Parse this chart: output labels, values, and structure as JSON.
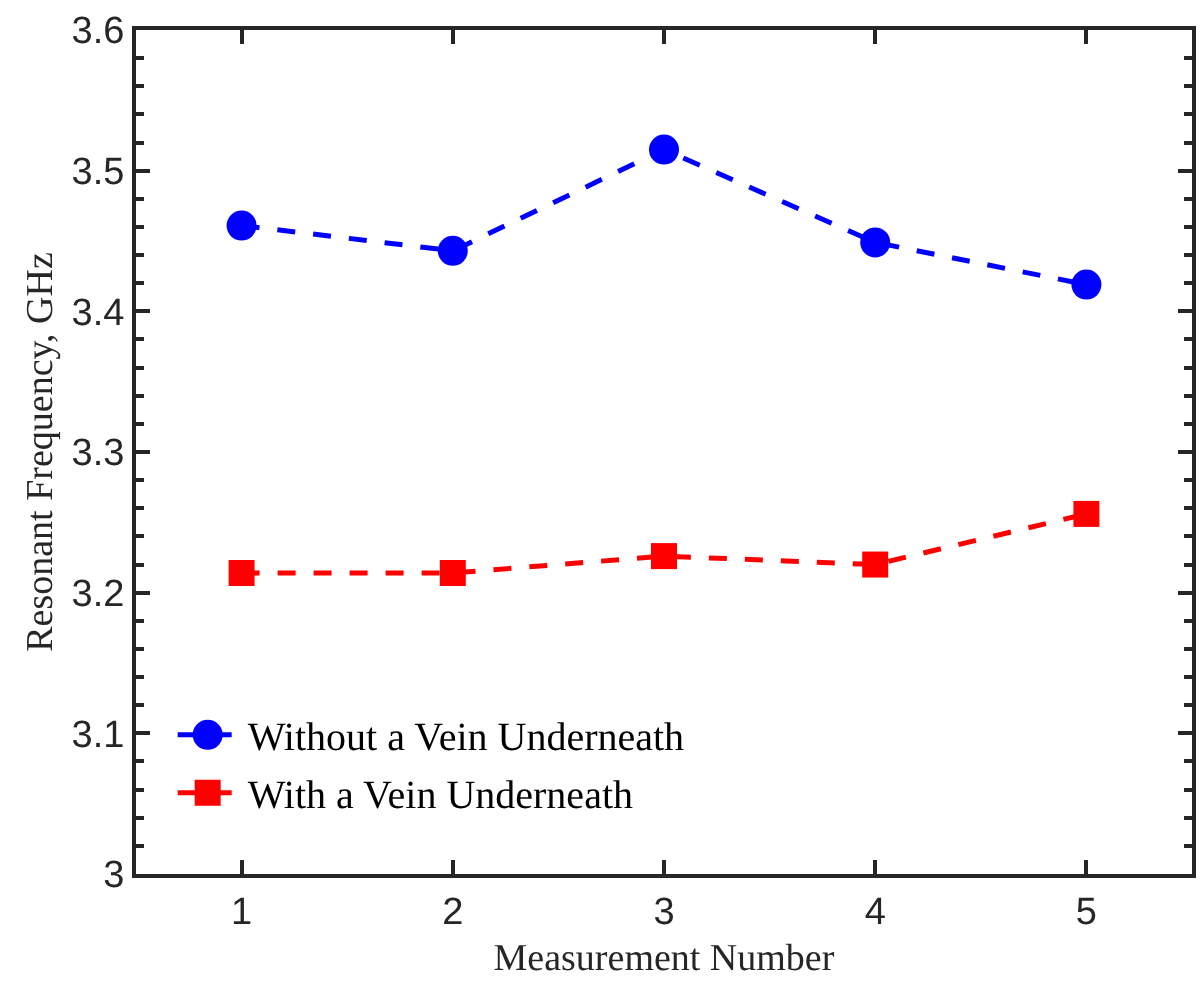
{
  "chart_data": {
    "type": "line",
    "xlabel": "Measurement Number",
    "ylabel": "Resonant Frequency, GHz",
    "x": [
      1,
      2,
      3,
      4,
      5
    ],
    "series": [
      {
        "name": "Without a Vein Underneath",
        "color": "#0000ff",
        "marker": "circle",
        "values": [
          3.461,
          3.443,
          3.515,
          3.449,
          3.419
        ]
      },
      {
        "name": "With a Vein Underneath",
        "color": "#ff0000",
        "marker": "square",
        "values": [
          3.214,
          3.214,
          3.226,
          3.22,
          3.256
        ]
      }
    ],
    "xlim": [
      0.5,
      5.5
    ],
    "xticks": [
      1,
      2,
      3,
      4,
      5
    ],
    "ylim": [
      3,
      3.6
    ],
    "yticks": [
      3,
      3.1,
      3.2,
      3.3,
      3.4,
      3.5,
      3.6
    ],
    "line_style": "dashed",
    "grid": false,
    "legend": "bottom left"
  }
}
